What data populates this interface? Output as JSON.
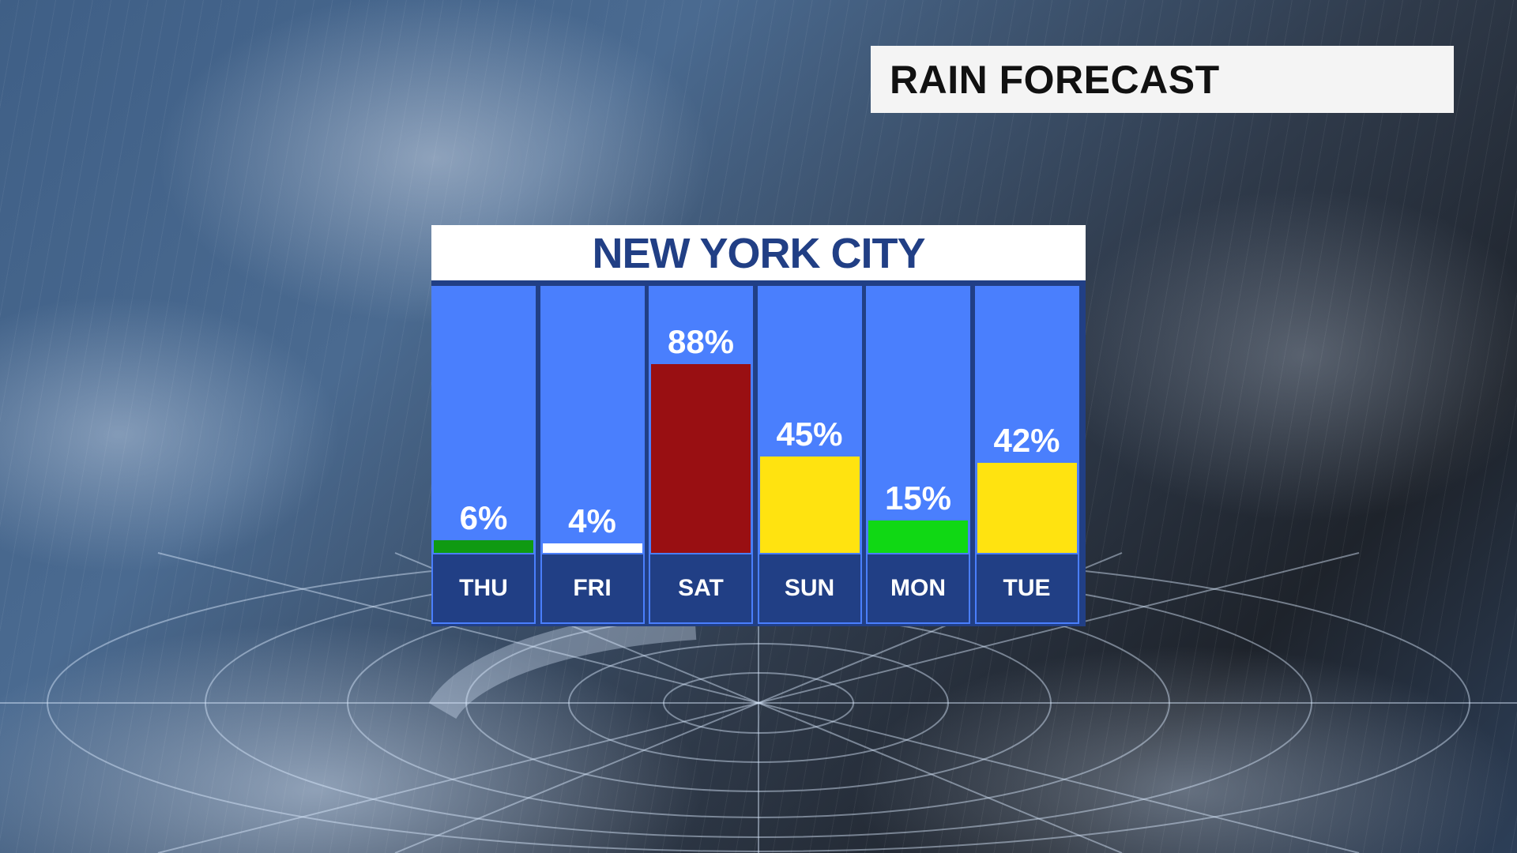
{
  "header": {
    "title": "RAIN FORECAST"
  },
  "chart_data": {
    "type": "bar",
    "title": "NEW YORK CITY",
    "categories": [
      "THU",
      "FRI",
      "SAT",
      "SUN",
      "MON",
      "TUE"
    ],
    "values": [
      6,
      4,
      88,
      45,
      15,
      42
    ],
    "labels": [
      "6%",
      "4%",
      "88%",
      "45%",
      "15%",
      "42%"
    ],
    "unit": "%",
    "ylim": [
      0,
      100
    ],
    "bar_colors": [
      "#0f9a12",
      "#ffffff",
      "#990f12",
      "#ffe310",
      "#10d814",
      "#ffe310"
    ],
    "column_background": "#4a7ffd",
    "label_background": "#213f85",
    "grid": false
  }
}
